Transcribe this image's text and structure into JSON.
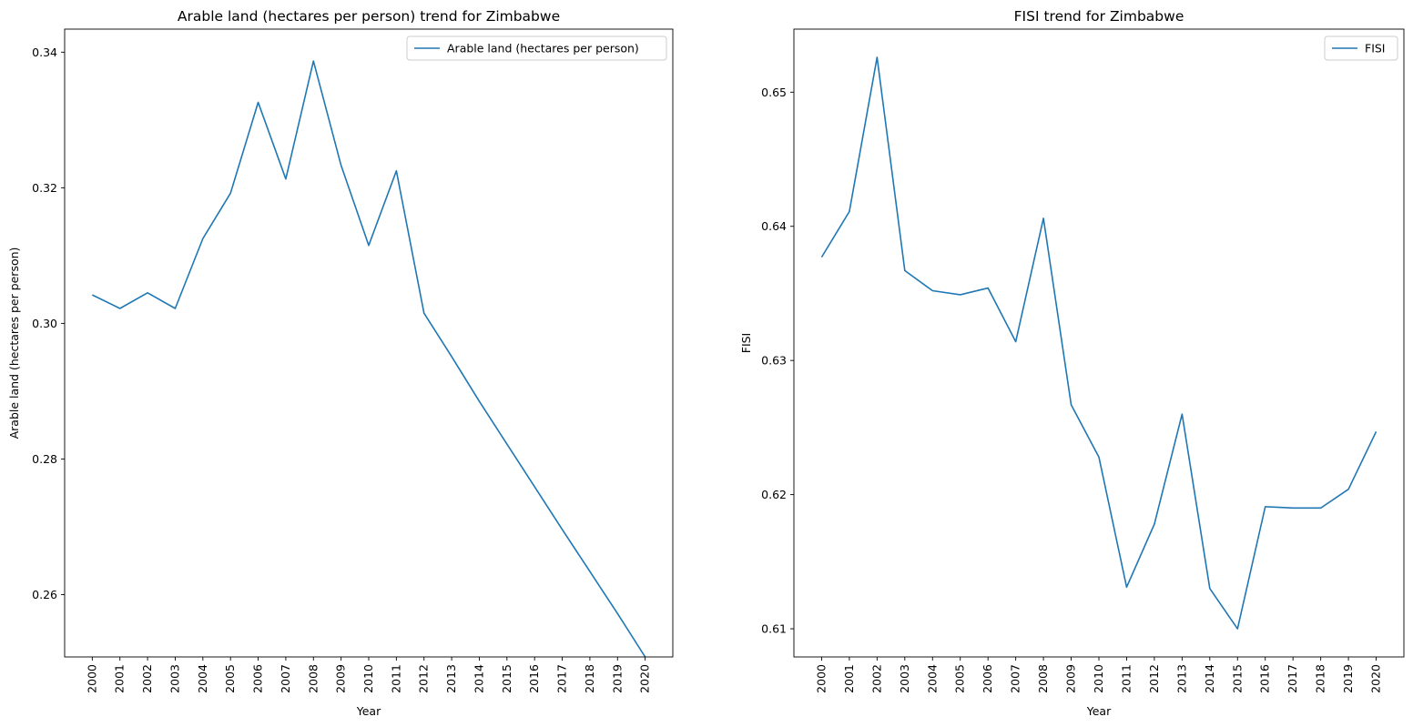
{
  "chart_data": [
    {
      "type": "line",
      "title": "Arable land (hectares per person) trend for Zimbabwe",
      "xlabel": "Year",
      "ylabel": "Arable land (hectares per person)",
      "categories": [
        "2000",
        "2001",
        "2002",
        "2003",
        "2004",
        "2005",
        "2006",
        "2007",
        "2008",
        "2009",
        "2010",
        "2011",
        "2012",
        "2013",
        "2014",
        "2015",
        "2016",
        "2017",
        "2018",
        "2019",
        "2020"
      ],
      "series": [
        {
          "name": "Arable land (hectares per person)",
          "color": "#1f77b4",
          "values": [
            0.3042,
            0.3022,
            0.3045,
            0.3022,
            0.3125,
            0.3192,
            0.3326,
            0.3213,
            0.3387,
            0.3233,
            0.3115,
            0.3225,
            0.3015,
            0.2951,
            0.2885,
            0.2822,
            0.2759,
            0.2696,
            0.2634,
            0.2572,
            0.2508
          ]
        }
      ],
      "ylim": [
        0.2508,
        0.3434
      ],
      "yticks": [
        "0.26",
        "0.28",
        "0.30",
        "0.32",
        "0.34"
      ],
      "ytick_values": [
        0.26,
        0.28,
        0.3,
        0.32,
        0.34
      ],
      "legend": "top-right",
      "grid": false
    },
    {
      "type": "line",
      "title": "FISI trend for Zimbabwe",
      "xlabel": "Year",
      "ylabel": "FISI",
      "categories": [
        "2000",
        "2001",
        "2002",
        "2003",
        "2004",
        "2005",
        "2006",
        "2007",
        "2008",
        "2009",
        "2010",
        "2011",
        "2012",
        "2013",
        "2014",
        "2015",
        "2016",
        "2017",
        "2018",
        "2019",
        "2020"
      ],
      "series": [
        {
          "name": "FISI",
          "color": "#1f77b4",
          "values": [
            0.6377,
            0.6411,
            0.6526,
            0.6367,
            0.6352,
            0.6349,
            0.6354,
            0.6314,
            0.6406,
            0.6267,
            0.6228,
            0.6131,
            0.6178,
            0.626,
            0.613,
            0.61,
            0.6191,
            0.619,
            0.619,
            0.6204,
            0.6247
          ]
        }
      ],
      "ylim": [
        0.6079,
        0.6547
      ],
      "yticks": [
        "0.61",
        "0.62",
        "0.63",
        "0.64",
        "0.65"
      ],
      "ytick_values": [
        0.61,
        0.62,
        0.63,
        0.64,
        0.65
      ],
      "legend": "top-right",
      "grid": false
    }
  ]
}
